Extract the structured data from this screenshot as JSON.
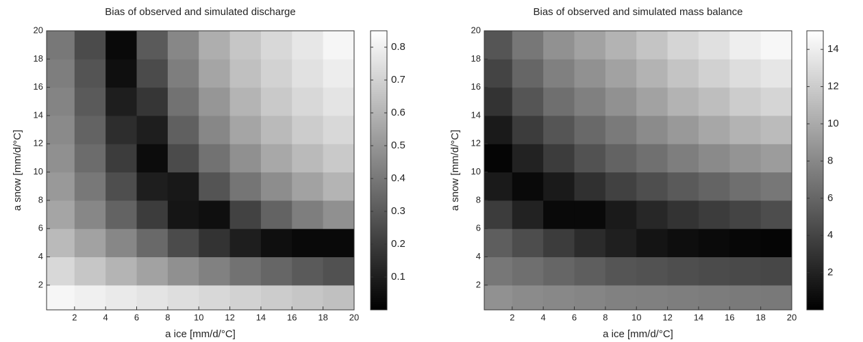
{
  "chart_data": [
    {
      "type": "heatmap",
      "title": "Bias of observed and simulated discharge",
      "x_label": "a ice [mm/d/°C]",
      "y_label": "a snow [mm/d/°C]",
      "x": [
        1,
        3,
        5,
        7,
        9,
        11,
        13,
        15,
        17,
        19
      ],
      "y": [
        1,
        3,
        5,
        7,
        9,
        11,
        13,
        15,
        17,
        19
      ],
      "z": [
        [
          0.82,
          0.8,
          0.78,
          0.76,
          0.74,
          0.72,
          0.7,
          0.68,
          0.66,
          0.64
        ],
        [
          0.72,
          0.66,
          0.6,
          0.54,
          0.48,
          0.43,
          0.38,
          0.34,
          0.3,
          0.27
        ],
        [
          0.62,
          0.54,
          0.45,
          0.35,
          0.25,
          0.17,
          0.1,
          0.05,
          0.03,
          0.03
        ],
        [
          0.55,
          0.45,
          0.33,
          0.2,
          0.07,
          0.05,
          0.22,
          0.33,
          0.42,
          0.48
        ],
        [
          0.51,
          0.4,
          0.26,
          0.1,
          0.08,
          0.28,
          0.39,
          0.47,
          0.54,
          0.6
        ],
        [
          0.48,
          0.36,
          0.2,
          0.04,
          0.25,
          0.38,
          0.48,
          0.56,
          0.62,
          0.67
        ],
        [
          0.46,
          0.33,
          0.15,
          0.1,
          0.32,
          0.45,
          0.55,
          0.62,
          0.68,
          0.72
        ],
        [
          0.44,
          0.3,
          0.1,
          0.18,
          0.38,
          0.5,
          0.6,
          0.67,
          0.72,
          0.76
        ],
        [
          0.42,
          0.28,
          0.05,
          0.25,
          0.42,
          0.55,
          0.64,
          0.7,
          0.75,
          0.79
        ],
        [
          0.4,
          0.25,
          0.03,
          0.3,
          0.45,
          0.58,
          0.66,
          0.72,
          0.77,
          0.82
        ]
      ],
      "xlim": [
        0.2,
        20
      ],
      "ylim": [
        0.25,
        20
      ],
      "xticks": [
        2,
        4,
        6,
        8,
        10,
        12,
        14,
        16,
        18,
        20
      ],
      "yticks": [
        2,
        4,
        6,
        8,
        10,
        12,
        14,
        16,
        18,
        20
      ],
      "colormap": [
        "#000000",
        "#ffffff"
      ],
      "zlim": [
        0,
        0.85
      ],
      "zticks": [
        0.1,
        0.2,
        0.3,
        0.4,
        0.5,
        0.6,
        0.7,
        0.8
      ]
    },
    {
      "type": "heatmap",
      "title": "Bias of observed and simulated mass balance",
      "x_label": "a ice [mm/d/°C]",
      "y_label": "a snow [mm/d/°C]",
      "x": [
        1,
        3,
        5,
        7,
        9,
        11,
        13,
        15,
        17,
        19
      ],
      "y": [
        1,
        3,
        5,
        7,
        9,
        11,
        13,
        15,
        17,
        19
      ],
      "z": [
        [
          8.5,
          8.2,
          8,
          7.8,
          7.6,
          7.5,
          7.4,
          7.3,
          7.2,
          7.1
        ],
        [
          7,
          6.5,
          6,
          5.5,
          5,
          4.8,
          4.6,
          4.4,
          4.3,
          4.2
        ],
        [
          5.5,
          4.5,
          3.5,
          2.5,
          1.8,
          1.2,
          0.8,
          0.6,
          0.4,
          0.3
        ],
        [
          3.5,
          2,
          0.5,
          0.5,
          1.5,
          2.3,
          3,
          3.5,
          4,
          4.5
        ],
        [
          1.5,
          0.5,
          1.5,
          2.8,
          3.8,
          4.6,
          5.3,
          5.9,
          6.5,
          7
        ],
        [
          0.3,
          2,
          3.5,
          4.8,
          5.8,
          6.6,
          7.4,
          8.1,
          8.7,
          9.2
        ],
        [
          1.5,
          3.5,
          5,
          6.2,
          7.2,
          8.2,
          9,
          9.8,
          10.5,
          11
        ],
        [
          3,
          5,
          6.5,
          7.5,
          8.5,
          9.5,
          10.5,
          11.2,
          12,
          12.5
        ],
        [
          4,
          6,
          7.5,
          8.5,
          9.5,
          10.5,
          11.5,
          12.3,
          13,
          13.5
        ],
        [
          5,
          7,
          8.5,
          9.5,
          10.5,
          11.5,
          12.5,
          13.2,
          14,
          14.5
        ]
      ],
      "xlim": [
        0.2,
        20
      ],
      "ylim": [
        0.25,
        20
      ],
      "xticks": [
        2,
        4,
        6,
        8,
        10,
        12,
        14,
        16,
        18,
        20
      ],
      "yticks": [
        2,
        4,
        6,
        8,
        10,
        12,
        14,
        16,
        18,
        20
      ],
      "colormap": [
        "#000000",
        "#ffffff"
      ],
      "zlim": [
        0,
        15
      ],
      "zticks": [
        2,
        4,
        6,
        8,
        10,
        12,
        14
      ]
    }
  ]
}
